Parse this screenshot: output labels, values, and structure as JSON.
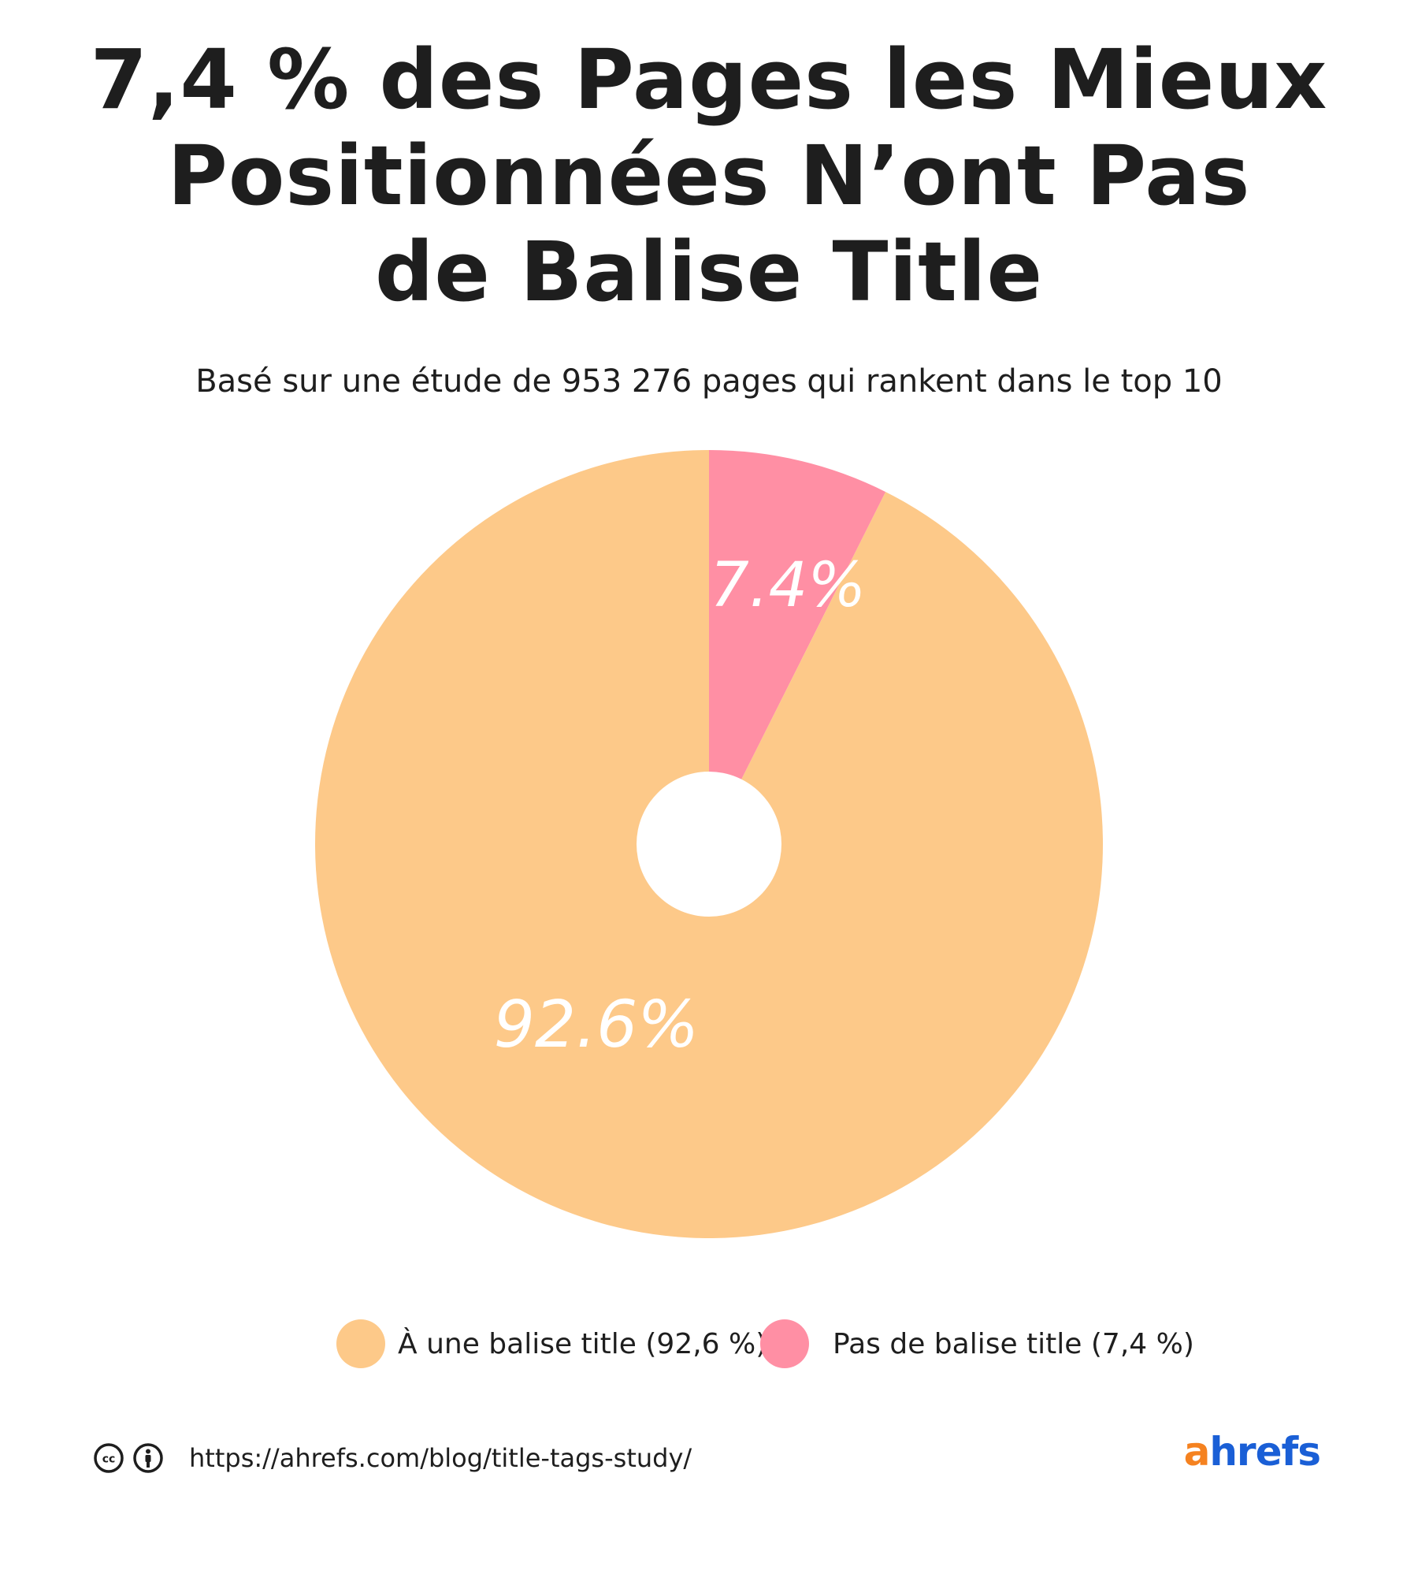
{
  "chart_data": {
    "type": "pie",
    "title": "7,4 % des Pages les Mieux Positionnées N’ont Pas de Balise Title",
    "title_lines": [
      "7,4 % des Pages les Mieux",
      "Positionnées N’ont Pas",
      "de Balise Title"
    ],
    "subtitle": "Basé sur une étude de 953 276 pages qui rankent dans le top 10",
    "slices": [
      {
        "label": "À une balise title (92,6 %)",
        "value": 92.6,
        "data_label": "92.6%",
        "color": "#fdc989"
      },
      {
        "label": "Pas de balise title (7,4 %)",
        "value": 7.4,
        "data_label": "7.4%",
        "color": "#ff8fa4"
      }
    ],
    "legend_position": "bottom",
    "donut_hole": true
  },
  "footer": {
    "url": "https://ahrefs.com/blog/title-tags-study/",
    "license_icons": [
      "cc-icon",
      "attribution-icon"
    ],
    "brand": "ahrefs",
    "brand_first_letter": "a",
    "brand_rest": "hrefs",
    "brand_colors": {
      "a": "#f58220",
      "rest": "#1a5fd6"
    }
  }
}
